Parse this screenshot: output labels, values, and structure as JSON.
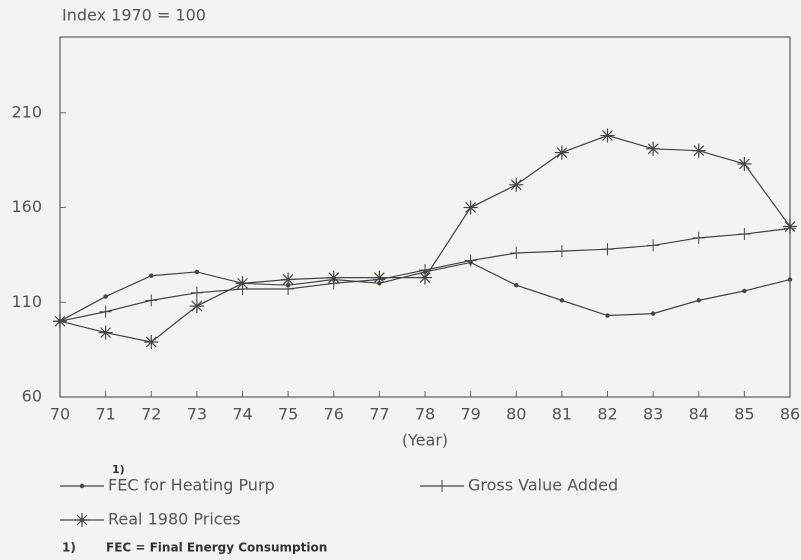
{
  "chart_data": {
    "type": "line",
    "y_label": "Index 1970 = 100",
    "x_label": "(Year)",
    "categories": [
      "70",
      "71",
      "72",
      "73",
      "74",
      "75",
      "76",
      "77",
      "78",
      "79",
      "80",
      "81",
      "82",
      "83",
      "84",
      "85",
      "86"
    ],
    "series": [
      {
        "name": "FEC for Heating Purp",
        "color": "#444444",
        "marker": "dot",
        "values": [
          100,
          113,
          124,
          126,
          120,
          119,
          122,
          120,
          126,
          131,
          119,
          111,
          103,
          104,
          111,
          116,
          122
        ]
      },
      {
        "name": "Gross Value Added",
        "color": "#444444",
        "marker": "plus",
        "values": [
          100,
          105,
          111,
          115,
          117,
          117,
          120,
          122,
          127,
          132,
          136,
          137,
          138,
          140,
          144,
          146,
          149
        ]
      },
      {
        "name": "Real 1980 Prices",
        "color": "#444444",
        "marker": "star",
        "values": [
          100,
          94,
          89,
          108,
          120,
          122,
          123,
          123,
          123,
          160,
          172,
          189,
          198,
          191,
          190,
          183,
          150
        ]
      }
    ],
    "legend_note": "1)",
    "footnote": {
      "marker": "1)",
      "text": "FEC = Final Energy Consumption"
    },
    "ylim": [
      60,
      250
    ],
    "yticks": [
      60,
      110,
      160,
      210
    ],
    "grid": false
  }
}
